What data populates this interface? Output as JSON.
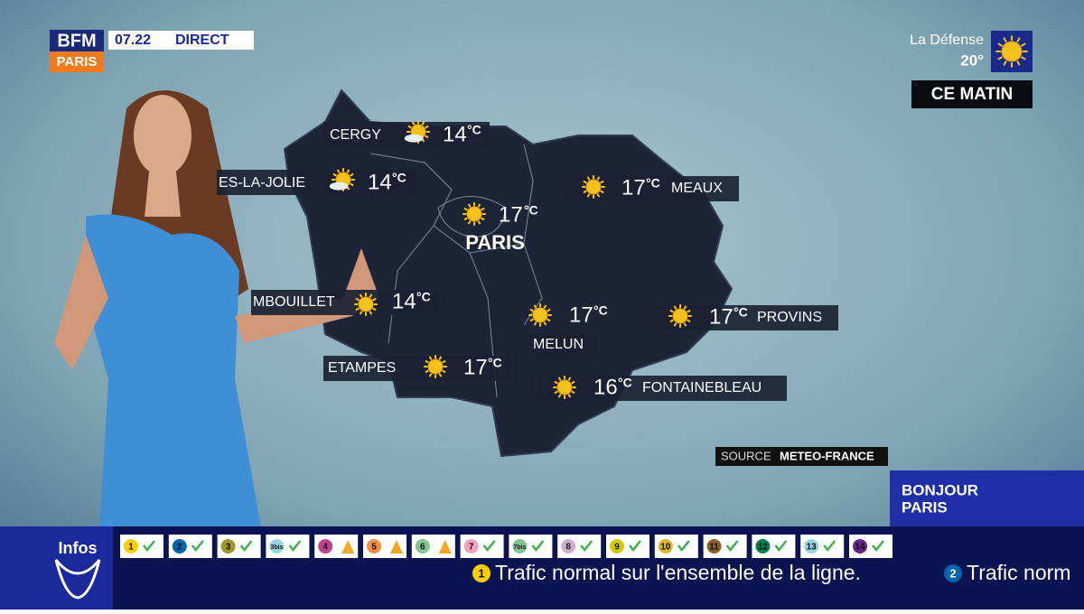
{
  "header": {
    "channel": "BFM",
    "region": "PARIS",
    "time": "07.22",
    "live": "DIRECT"
  },
  "corner": {
    "place": "La Défense",
    "temperature": "20°",
    "period": "CE MATIN"
  },
  "cities": [
    {
      "name": "CERGY",
      "temp": 14,
      "unit": "°C"
    },
    {
      "name": "ES-LA-JOLIE",
      "temp": 14,
      "unit": "°C"
    },
    {
      "name": "PARIS",
      "temp": 17,
      "unit": "°C"
    },
    {
      "name": "MEAUX",
      "temp": 17,
      "unit": "°C"
    },
    {
      "name": "MBOUILLET",
      "temp": 14,
      "unit": "°C"
    },
    {
      "name": "ETAMPES",
      "temp": 17,
      "unit": "°C"
    },
    {
      "name": "MELUN",
      "temp": 17,
      "unit": "°C"
    },
    {
      "name": "PROVINS",
      "temp": 17,
      "unit": "°C"
    },
    {
      "name": "FONTAINEBLEAU",
      "temp": 16,
      "unit": "°C"
    }
  ],
  "source": {
    "label": "SOURCE",
    "name": "METEO-FRANCE"
  },
  "show": {
    "line1": "BONJOUR",
    "line2": "PARIS"
  },
  "infos": {
    "title": "Infos"
  },
  "metro": [
    {
      "line": "1",
      "color": "#ffce00"
    },
    {
      "line": "2",
      "color": "#0064b0"
    },
    {
      "line": "3",
      "color": "#9f9825"
    },
    {
      "line": "3bis",
      "color": "#98d4e2"
    },
    {
      "line": "4",
      "color": "#c04191"
    },
    {
      "line": "5",
      "color": "#f28e42"
    },
    {
      "line": "6",
      "color": "#83c491"
    },
    {
      "line": "7",
      "color": "#f3a4ba"
    },
    {
      "line": "7bis",
      "color": "#83c491"
    },
    {
      "line": "8",
      "color": "#ceadd2"
    },
    {
      "line": "9",
      "color": "#d5c900"
    },
    {
      "line": "10",
      "color": "#e3b32a"
    },
    {
      "line": "11",
      "color": "#8d5e2a"
    },
    {
      "line": "12",
      "color": "#00814f"
    },
    {
      "line": "13",
      "color": "#98d4e2"
    },
    {
      "line": "14",
      "color": "#662483"
    }
  ],
  "ticker": [
    {
      "line": "1",
      "text": "Trafic normal sur l'ensemble de la ligne."
    },
    {
      "line": "2",
      "text": "Trafic norm"
    }
  ]
}
